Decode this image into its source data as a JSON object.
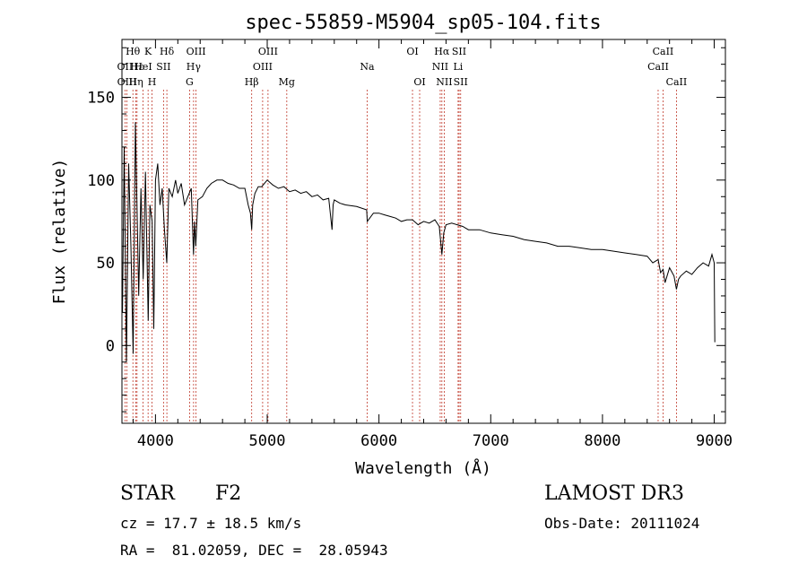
{
  "chart_data": {
    "type": "line",
    "title": "spec-55859-M5904_sp05-104.fits",
    "xlabel": "Wavelength (Å)",
    "ylabel": "Flux (relative)",
    "xlim": [
      3700,
      9100
    ],
    "ylim": [
      -47,
      185
    ],
    "xticks": [
      4000,
      5000,
      6000,
      7000,
      8000,
      9000
    ],
    "yticks": [
      0,
      50,
      100,
      150
    ],
    "series": [
      {
        "name": "flux",
        "x": [
          3705,
          3720,
          3740,
          3760,
          3780,
          3800,
          3820,
          3850,
          3870,
          3890,
          3910,
          3935,
          3950,
          3970,
          3985,
          4000,
          4020,
          4040,
          4060,
          4080,
          4101,
          4120,
          4150,
          4180,
          4200,
          4230,
          4260,
          4290,
          4320,
          4340,
          4350,
          4360,
          4380,
          4420,
          4460,
          4500,
          4550,
          4600,
          4650,
          4700,
          4750,
          4800,
          4830,
          4850,
          4861,
          4870,
          4890,
          4920,
          4950,
          5000,
          5050,
          5100,
          5150,
          5200,
          5250,
          5300,
          5350,
          5400,
          5450,
          5500,
          5550,
          5580,
          5590,
          5600,
          5650,
          5700,
          5800,
          5890,
          5895,
          5950,
          6000,
          6050,
          6100,
          6150,
          6200,
          6250,
          6300,
          6350,
          6400,
          6450,
          6500,
          6540,
          6563,
          6580,
          6600,
          6650,
          6700,
          6750,
          6800,
          6900,
          7000,
          7100,
          7200,
          7300,
          7400,
          7500,
          7600,
          7700,
          7800,
          7900,
          8000,
          8100,
          8200,
          8300,
          8400,
          8450,
          8498,
          8520,
          8542,
          8560,
          8600,
          8640,
          8662,
          8680,
          8700,
          8750,
          8800,
          8850,
          8900,
          8950,
          8980,
          9000,
          9005
        ],
        "values": [
          20,
          120,
          -10,
          110,
          60,
          -5,
          135,
          30,
          95,
          40,
          105,
          15,
          85,
          75,
          10,
          100,
          110,
          85,
          95,
          70,
          50,
          95,
          90,
          100,
          92,
          98,
          85,
          90,
          95,
          55,
          75,
          60,
          88,
          90,
          95,
          98,
          100,
          100,
          98,
          97,
          95,
          95,
          85,
          80,
          70,
          85,
          92,
          96,
          96,
          100,
          97,
          95,
          96,
          93,
          94,
          92,
          93,
          90,
          91,
          88,
          89,
          70,
          85,
          88,
          86,
          85,
          84,
          82,
          75,
          80,
          80,
          79,
          78,
          77,
          75,
          76,
          76,
          73,
          75,
          74,
          76,
          72,
          55,
          68,
          73,
          74,
          73,
          72,
          70,
          70,
          68,
          67,
          66,
          64,
          63,
          62,
          60,
          60,
          59,
          58,
          58,
          57,
          56,
          55,
          54,
          50,
          52,
          44,
          46,
          38,
          47,
          42,
          34,
          40,
          42,
          45,
          43,
          47,
          50,
          48,
          55,
          50,
          2
        ]
      }
    ],
    "line_markers": [
      {
        "label": "Hθ",
        "x": 3798,
        "row": 0
      },
      {
        "label": "OII",
        "x": 3727,
        "row": 1
      },
      {
        "label": "OIII",
        "x": 3745,
        "row": 2
      },
      {
        "label": "Hε",
        "x": 3835,
        "row": 1
      },
      {
        "label": "Hη",
        "x": 3825,
        "row": 2
      },
      {
        "label": "K",
        "x": 3934,
        "row": 0
      },
      {
        "label": "HeI",
        "x": 3889,
        "row": 1
      },
      {
        "label": "H",
        "x": 3969,
        "row": 2
      },
      {
        "label": "SII",
        "x": 4072,
        "row": 1
      },
      {
        "label": "Hδ",
        "x": 4102,
        "row": 0
      },
      {
        "label": "OIII",
        "x": 4363,
        "row": 0
      },
      {
        "label": "Hγ",
        "x": 4341,
        "row": 1
      },
      {
        "label": "G",
        "x": 4305,
        "row": 2
      },
      {
        "label": "Hβ",
        "x": 4861,
        "row": 2
      },
      {
        "label": "OIII",
        "x": 5007,
        "row": 0
      },
      {
        "label": "OIII",
        "x": 4959,
        "row": 1
      },
      {
        "label": "Mg",
        "x": 5175,
        "row": 2
      },
      {
        "label": "Na",
        "x": 5894,
        "row": 1
      },
      {
        "label": "OI",
        "x": 6300,
        "row": 0
      },
      {
        "label": "OI",
        "x": 6364,
        "row": 2
      },
      {
        "label": "Hα",
        "x": 6563,
        "row": 0
      },
      {
        "label": "NII",
        "x": 6548,
        "row": 1
      },
      {
        "label": "NII",
        "x": 6584,
        "row": 2
      },
      {
        "label": "SII",
        "x": 6717,
        "row": 0
      },
      {
        "label": "Li",
        "x": 6708,
        "row": 1
      },
      {
        "label": "SII",
        "x": 6731,
        "row": 2
      },
      {
        "label": "CaII",
        "x": 8542,
        "row": 0
      },
      {
        "label": "CaII",
        "x": 8498,
        "row": 1
      },
      {
        "label": "CaII",
        "x": 8662,
        "row": 2
      }
    ]
  },
  "info": {
    "object_type": "STAR",
    "subclass": "F2",
    "survey": "LAMOST DR3",
    "velocity": "cz = 17.7 ± 18.5 km/s",
    "obs_date": "Obs-Date: 20111024",
    "coords": "RA =  81.02059, DEC =  28.05943"
  }
}
